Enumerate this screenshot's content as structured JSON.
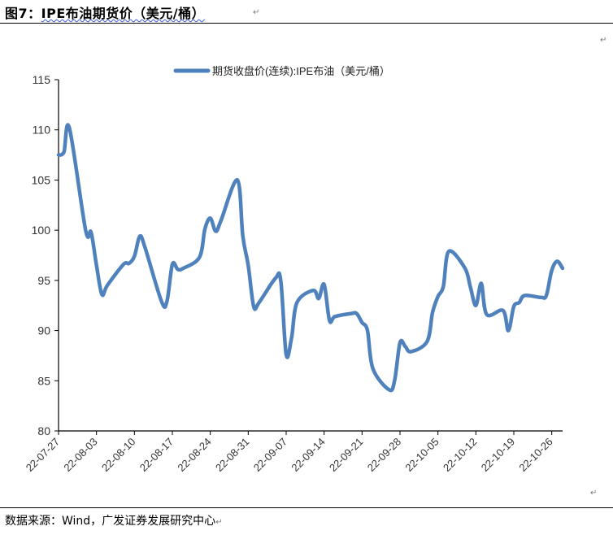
{
  "figure": {
    "title_prefix": "图7：",
    "title_main": "IPE布油期货价（美元/桶）",
    "source": "数据来源：Wind，广发证券发展研究中心",
    "para_mark": "↵"
  },
  "chart_data": {
    "type": "line",
    "legend_position": "top",
    "grid": false,
    "ylim": [
      80,
      115
    ],
    "yticks": [
      80,
      85,
      90,
      95,
      100,
      105,
      110,
      115
    ],
    "xtick_labels": [
      "22-07-27",
      "22-08-03",
      "22-08-10",
      "22-08-17",
      "22-08-24",
      "22-08-31",
      "22-09-07",
      "22-09-14",
      "22-09-21",
      "22-09-28",
      "22-10-05",
      "22-10-12",
      "22-10-19",
      "22-10-26"
    ],
    "line_color": "#4f81bd",
    "series": [
      {
        "name": "期货收盘价(连续):IPE布油（美元/桶）",
        "x": [
          "22-07-27",
          "22-07-28",
          "22-07-29",
          "22-08-01",
          "22-08-02",
          "22-08-03",
          "22-08-04",
          "22-08-05",
          "22-08-08",
          "22-08-09",
          "22-08-10",
          "22-08-11",
          "22-08-12",
          "22-08-15",
          "22-08-16",
          "22-08-17",
          "22-08-18",
          "22-08-19",
          "22-08-22",
          "22-08-23",
          "22-08-24",
          "22-08-25",
          "22-08-26",
          "22-08-29",
          "22-08-30",
          "22-08-31",
          "22-09-01",
          "22-09-02",
          "22-09-05",
          "22-09-06",
          "22-09-07",
          "22-09-08",
          "22-09-09",
          "22-09-12",
          "22-09-13",
          "22-09-14",
          "22-09-15",
          "22-09-16",
          "22-09-19",
          "22-09-20",
          "22-09-21",
          "22-09-22",
          "22-09-23",
          "22-09-26",
          "22-09-27",
          "22-09-28",
          "22-09-29",
          "22-09-30",
          "22-10-03",
          "22-10-04",
          "22-10-05",
          "22-10-06",
          "22-10-07",
          "22-10-10",
          "22-10-11",
          "22-10-12",
          "22-10-13",
          "22-10-14",
          "22-10-17",
          "22-10-18",
          "22-10-19",
          "22-10-20",
          "22-10-21",
          "22-10-24",
          "22-10-25",
          "22-10-26",
          "22-10-27",
          "22-10-28"
        ],
        "values": [
          107.5,
          107.8,
          110.2,
          100.0,
          99.8,
          96.5,
          93.6,
          94.5,
          96.6,
          96.7,
          97.4,
          99.4,
          98.2,
          92.9,
          92.9,
          96.6,
          96.1,
          96.2,
          97.3,
          100.1,
          101.2,
          99.9,
          101.0,
          105.0,
          99.4,
          96.5,
          92.4,
          92.8,
          95.2,
          95.0,
          87.6,
          89.3,
          92.8,
          94.0,
          93.2,
          94.6,
          91.0,
          91.4,
          91.7,
          91.7,
          90.8,
          90.0,
          86.2,
          84.1,
          85.0,
          88.8,
          88.4,
          87.9,
          88.9,
          91.8,
          93.4,
          94.4,
          97.9,
          96.2,
          94.3,
          92.5,
          94.7,
          91.6,
          92.0,
          90.0,
          92.4,
          92.8,
          93.5,
          93.3,
          93.5,
          96.0,
          96.9,
          96.2
        ]
      }
    ]
  }
}
